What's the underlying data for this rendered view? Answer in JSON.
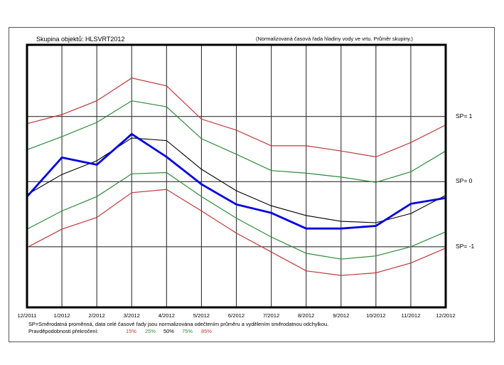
{
  "chart_data": {
    "type": "line",
    "title": "Skupina objektů: HLSVRT2012",
    "subtitle": "(Normalizovaná časová řada hladiny vody ve vrtu. Průměr skupiny.)",
    "xlabel": "",
    "ylabel": "",
    "categories": [
      "12/2011",
      "1/2012",
      "2/2012",
      "3/2012",
      "4/2012",
      "5/2012",
      "6/2012",
      "7/2012",
      "8/2012",
      "9/2012",
      "10/2012",
      "11/2012",
      "12/2012"
    ],
    "ylim": [
      -1.93,
      2.1
    ],
    "y_reference_lines": [
      {
        "value": 1,
        "label": "SP= 1"
      },
      {
        "value": 0,
        "label": "SP= 0"
      },
      {
        "value": -1,
        "label": "SP= -1"
      }
    ],
    "grid": true,
    "series": [
      {
        "name": "15%",
        "color": "#c0393b",
        "width": 1.2,
        "values": [
          0.89,
          1.03,
          1.24,
          1.59,
          1.47,
          0.96,
          0.79,
          0.55,
          0.55,
          0.47,
          0.38,
          0.6,
          0.87
        ]
      },
      {
        "name": "25%",
        "color": "#2e8b3a",
        "width": 1.2,
        "values": [
          0.49,
          0.69,
          0.91,
          1.24,
          1.15,
          0.66,
          0.42,
          0.17,
          0.13,
          0.07,
          -0.01,
          0.15,
          0.47
        ]
      },
      {
        "name": "50%",
        "color": "#000000",
        "width": 1.1,
        "values": [
          -0.2,
          0.11,
          0.32,
          0.67,
          0.63,
          0.19,
          -0.14,
          -0.37,
          -0.52,
          -0.61,
          -0.63,
          -0.49,
          -0.21
        ]
      },
      {
        "name": "75%",
        "color": "#2e8b3a",
        "width": 1.2,
        "values": [
          -0.73,
          -0.45,
          -0.23,
          0.12,
          0.14,
          -0.23,
          -0.56,
          -0.85,
          -1.1,
          -1.19,
          -1.14,
          -1.0,
          -0.77
        ]
      },
      {
        "name": "85%",
        "color": "#c0393b",
        "width": 1.2,
        "values": [
          -1.01,
          -0.73,
          -0.55,
          -0.17,
          -0.12,
          -0.45,
          -0.79,
          -1.08,
          -1.37,
          -1.44,
          -1.4,
          -1.25,
          -1.02
        ]
      },
      {
        "name": "Průměr skupiny",
        "color": "#0000e0",
        "width": 2.8,
        "values": [
          -0.23,
          0.37,
          0.26,
          0.73,
          0.38,
          -0.04,
          -0.35,
          -0.48,
          -0.72,
          -0.72,
          -0.68,
          -0.34,
          -0.25
        ]
      }
    ],
    "legend": {
      "label": "Pravděpodobnosti překročení:",
      "entries": [
        {
          "text": "15%",
          "color": "#c0393b"
        },
        {
          "text": "25%",
          "color": "#2e8b3a"
        },
        {
          "text": "50%",
          "color": "#000000"
        },
        {
          "text": "75%",
          "color": "#2e8b3a"
        },
        {
          "text": "85%",
          "color": "#c0393b"
        }
      ],
      "placement": "bottom-left"
    },
    "note": "SP=Směrodatná proměnná, data celé časové řady jsou normalizována odečtením průměru a vydělením směrodatnou odchylkou."
  }
}
